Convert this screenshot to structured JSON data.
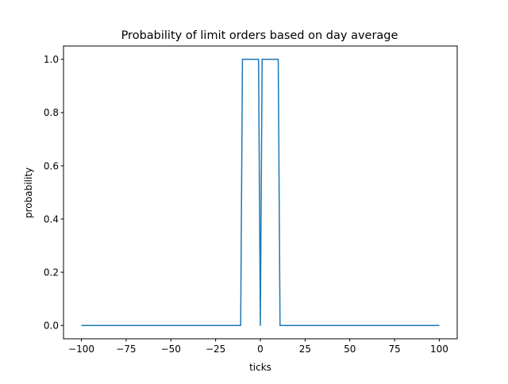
{
  "chart_data": {
    "type": "line",
    "title": "Probability of limit orders based on day average",
    "xlabel": "ticks",
    "ylabel": "probability",
    "xlim": [
      -110,
      110
    ],
    "ylim": [
      -0.05,
      1.05
    ],
    "xticks": [
      -100,
      -75,
      -50,
      -25,
      0,
      25,
      50,
      75,
      100
    ],
    "xtick_labels": [
      "−100",
      "−75",
      "−50",
      "−25",
      "0",
      "25",
      "50",
      "75",
      "100"
    ],
    "yticks": [
      0.0,
      0.2,
      0.4,
      0.6,
      0.8,
      1.0
    ],
    "ytick_labels": [
      "0.0",
      "0.2",
      "0.4",
      "0.6",
      "0.8",
      "1.0"
    ],
    "grid": false,
    "series": [
      {
        "name": "probability",
        "color": "#1f77b4",
        "x": [
          -100,
          -11,
          -10,
          -1,
          0,
          1,
          10,
          11,
          100
        ],
        "y": [
          0,
          0,
          1,
          1,
          0,
          1,
          1,
          0,
          0
        ]
      }
    ]
  }
}
